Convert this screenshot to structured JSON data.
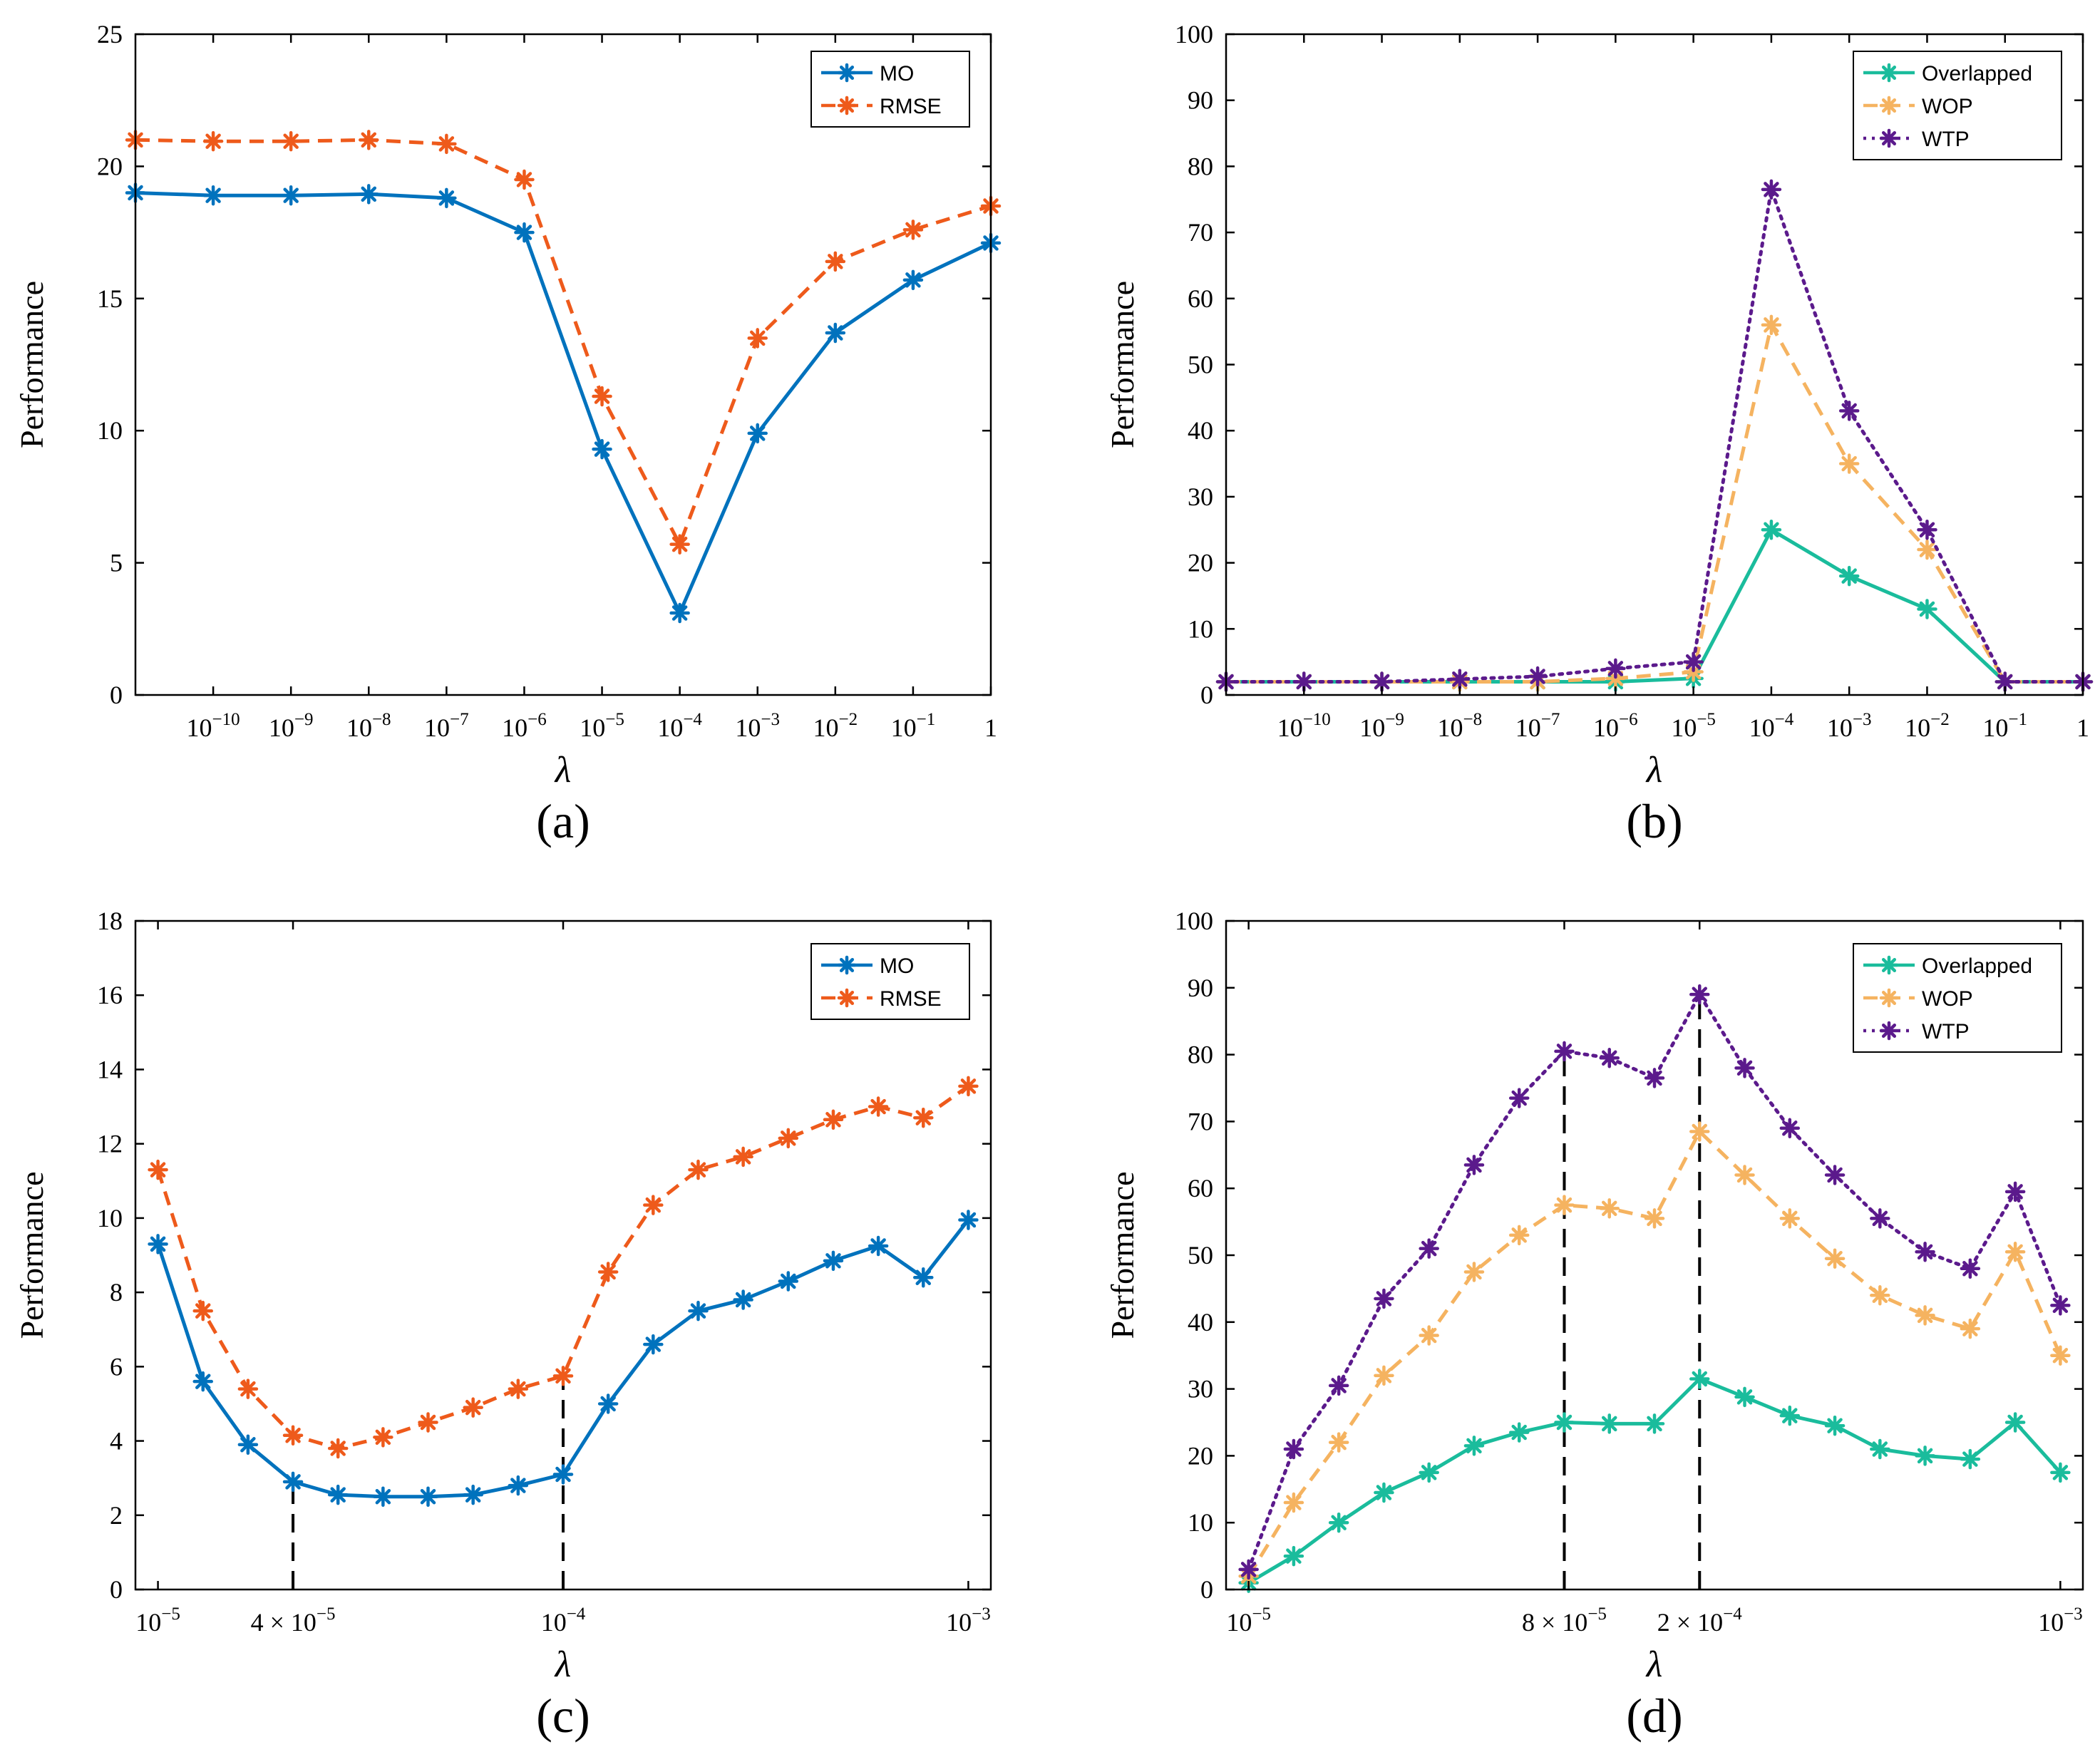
{
  "chart_data": [
    {
      "type": "line",
      "panel": "(a)",
      "ylabel": "Performance",
      "xlabel": "λ",
      "ylim": [
        0,
        25
      ],
      "yticks": [
        0,
        5,
        10,
        15,
        20,
        25
      ],
      "xlim": [
        0,
        11
      ],
      "xticks": [
        {
          "pos": 1,
          "base": "10",
          "exp": "−10"
        },
        {
          "pos": 2,
          "base": "10",
          "exp": "−9"
        },
        {
          "pos": 3,
          "base": "10",
          "exp": "−8"
        },
        {
          "pos": 4,
          "base": "10",
          "exp": "−7"
        },
        {
          "pos": 5,
          "base": "10",
          "exp": "−6"
        },
        {
          "pos": 6,
          "base": "10",
          "exp": "−5"
        },
        {
          "pos": 7,
          "base": "10",
          "exp": "−4"
        },
        {
          "pos": 8,
          "base": "10",
          "exp": "−3"
        },
        {
          "pos": 9,
          "base": "10",
          "exp": "−2"
        },
        {
          "pos": 10,
          "base": "10",
          "exp": "−1"
        },
        {
          "pos": 11,
          "base": "1",
          "exp": ""
        }
      ],
      "x": [
        0,
        1,
        2,
        3,
        4,
        5,
        6,
        7,
        8,
        9,
        10,
        11
      ],
      "series": [
        {
          "name": "MO",
          "color": "#0072BD",
          "dash": "solid",
          "values": [
            19.0,
            18.9,
            18.9,
            18.95,
            18.8,
            17.5,
            9.3,
            3.1,
            9.9,
            13.7,
            15.7,
            17.1
          ]
        },
        {
          "name": "RMSE",
          "color": "#EE5A1B",
          "dash": "dashed",
          "values": [
            21.0,
            20.95,
            20.95,
            21.0,
            20.85,
            19.5,
            11.3,
            5.7,
            13.5,
            16.4,
            17.6,
            18.5
          ]
        }
      ],
      "guides": []
    },
    {
      "type": "line",
      "panel": "(b)",
      "ylabel": "Performance",
      "xlabel": "λ",
      "ylim": [
        0,
        100
      ],
      "yticks": [
        0,
        10,
        20,
        30,
        40,
        50,
        60,
        70,
        80,
        90,
        100
      ],
      "xlim": [
        0,
        11
      ],
      "xticks": [
        {
          "pos": 1,
          "base": "10",
          "exp": "−10"
        },
        {
          "pos": 2,
          "base": "10",
          "exp": "−9"
        },
        {
          "pos": 3,
          "base": "10",
          "exp": "−8"
        },
        {
          "pos": 4,
          "base": "10",
          "exp": "−7"
        },
        {
          "pos": 5,
          "base": "10",
          "exp": "−6"
        },
        {
          "pos": 6,
          "base": "10",
          "exp": "−5"
        },
        {
          "pos": 7,
          "base": "10",
          "exp": "−4"
        },
        {
          "pos": 8,
          "base": "10",
          "exp": "−3"
        },
        {
          "pos": 9,
          "base": "10",
          "exp": "−2"
        },
        {
          "pos": 10,
          "base": "10",
          "exp": "−1"
        },
        {
          "pos": 11,
          "base": "1",
          "exp": ""
        }
      ],
      "x": [
        0,
        1,
        2,
        3,
        4,
        5,
        6,
        7,
        8,
        9,
        10,
        11
      ],
      "series": [
        {
          "name": "Overlapped",
          "color": "#1ABC9C",
          "dash": "solid",
          "values": [
            2,
            2,
            2,
            2,
            2,
            2,
            2.5,
            25,
            18,
            13,
            2,
            2
          ]
        },
        {
          "name": "WOP",
          "color": "#F5B360",
          "dash": "dashed",
          "values": [
            2,
            2,
            2,
            2,
            2,
            2.5,
            3.5,
            56,
            35,
            22,
            2,
            2
          ]
        },
        {
          "name": "WTP",
          "color": "#5B1A8C",
          "dash": "dotted",
          "values": [
            2,
            2,
            2,
            2.4,
            2.8,
            4,
            5,
            76.5,
            43,
            25,
            2,
            2
          ]
        }
      ],
      "guides": []
    },
    {
      "type": "line",
      "panel": "(c)",
      "ylabel": "Performance",
      "xlabel": "λ",
      "ylim": [
        0,
        18
      ],
      "yticks": [
        0,
        2,
        4,
        6,
        8,
        10,
        12,
        14,
        16,
        18
      ],
      "xlim": [
        -0.5,
        18.5
      ],
      "xticks": [
        {
          "pos": 0,
          "base": "10",
          "exp": "−5"
        },
        {
          "pos": 3,
          "base": "4 × 10",
          "exp": "−5"
        },
        {
          "pos": 9,
          "base": "10",
          "exp": "−4"
        },
        {
          "pos": 18,
          "base": "10",
          "exp": "−3"
        }
      ],
      "x": [
        0,
        1,
        2,
        3,
        4,
        5,
        6,
        7,
        8,
        9,
        10,
        11,
        12,
        13,
        14,
        15,
        16,
        17,
        18
      ],
      "series": [
        {
          "name": "MO",
          "color": "#0072BD",
          "dash": "solid",
          "values": [
            9.3,
            5.6,
            3.9,
            2.9,
            2.55,
            2.5,
            2.5,
            2.55,
            2.8,
            3.1,
            5.0,
            6.6,
            7.5,
            7.8,
            8.3,
            8.85,
            9.25,
            8.4,
            9.95
          ]
        },
        {
          "name": "RMSE",
          "color": "#EE5A1B",
          "dash": "dashed",
          "values": [
            11.3,
            7.5,
            5.4,
            4.15,
            3.8,
            4.1,
            4.5,
            4.9,
            5.4,
            5.75,
            8.55,
            10.35,
            11.3,
            11.65,
            12.15,
            12.65,
            13.0,
            12.7,
            13.55
          ]
        }
      ],
      "guides": [
        {
          "x": 3,
          "to_series": 0
        },
        {
          "x": 9,
          "to_series": 1
        }
      ]
    },
    {
      "type": "line",
      "panel": "(d)",
      "ylabel": "Performance",
      "xlabel": "λ",
      "ylim": [
        0,
        100
      ],
      "yticks": [
        0,
        10,
        20,
        30,
        40,
        50,
        60,
        70,
        80,
        90,
        100
      ],
      "xlim": [
        -0.5,
        18.5
      ],
      "xticks": [
        {
          "pos": 0,
          "base": "10",
          "exp": "−5"
        },
        {
          "pos": 7,
          "base": "8 × 10",
          "exp": "−5"
        },
        {
          "pos": 10,
          "base": "2 × 10",
          "exp": "−4"
        },
        {
          "pos": 18,
          "base": "10",
          "exp": "−3"
        }
      ],
      "x": [
        0,
        1,
        2,
        3,
        4,
        5,
        6,
        7,
        8,
        9,
        10,
        11,
        12,
        13,
        14,
        15,
        16,
        17,
        18
      ],
      "series": [
        {
          "name": "Overlapped",
          "color": "#1ABC9C",
          "dash": "solid",
          "values": [
            1,
            5,
            10,
            14.5,
            17.5,
            21.5,
            23.5,
            25,
            24.8,
            24.8,
            31.5,
            28.8,
            26,
            24.5,
            21,
            20,
            19.5,
            25,
            17.5
          ]
        },
        {
          "name": "WOP",
          "color": "#F5B360",
          "dash": "dashed",
          "values": [
            2,
            13,
            22,
            32,
            38,
            47.5,
            53,
            57.5,
            57,
            55.5,
            68.5,
            62,
            55.5,
            49.5,
            44,
            41,
            39,
            50.5,
            35
          ]
        },
        {
          "name": "WTP",
          "color": "#5B1A8C",
          "dash": "dotted",
          "values": [
            3,
            21,
            30.5,
            43.5,
            51,
            63.5,
            73.5,
            80.5,
            79.5,
            76.5,
            89,
            78,
            69,
            62,
            55.5,
            50.5,
            48,
            59.5,
            42.5
          ]
        }
      ],
      "guides": [
        {
          "x": 7,
          "to_series": 2
        },
        {
          "x": 10,
          "to_series": 2
        }
      ]
    }
  ]
}
